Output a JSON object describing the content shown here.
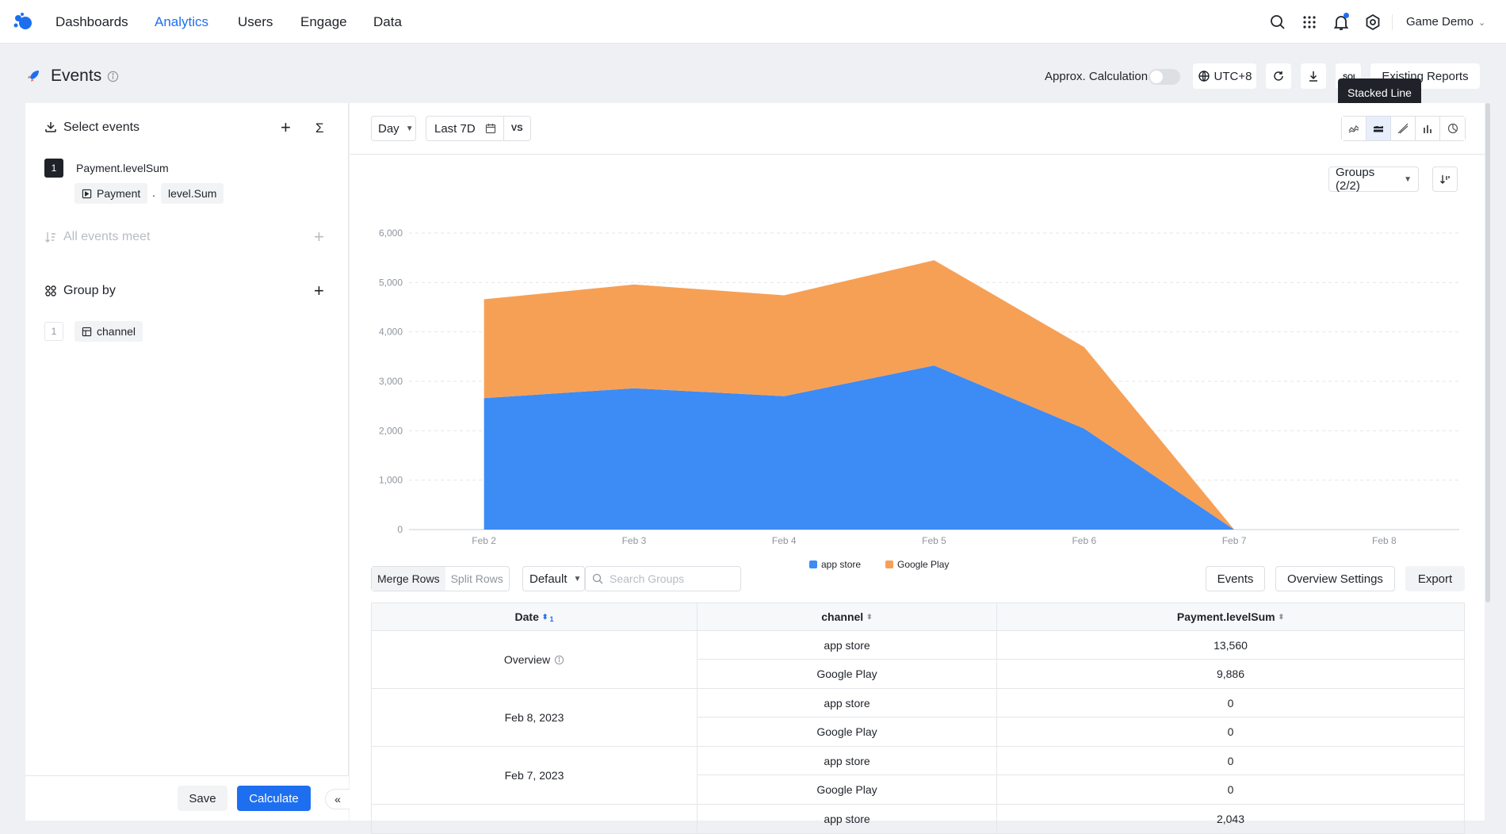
{
  "nav": {
    "items": [
      "Dashboards",
      "Analytics",
      "Users",
      "Engage",
      "Data"
    ],
    "active": "Analytics",
    "project": "Game Demo"
  },
  "header": {
    "title": "Events",
    "approx_label": "Approx. Calculation",
    "approx_enabled": false,
    "timezone": "UTC+8",
    "existing_reports": "Existing Reports",
    "tooltip": "Stacked Line"
  },
  "left": {
    "select_events_title": "Select events",
    "event_index": "1",
    "event_name": "Payment.levelSum",
    "event_chip": "Payment",
    "event_sep": ".",
    "metric_chip": "level.Sum",
    "all_events_meet": "All events meet",
    "group_by_title": "Group by",
    "group_index": "1",
    "group_chip": "channel",
    "save": "Save",
    "calculate": "Calculate",
    "collapse": "«"
  },
  "toolbar": {
    "granularity": "Day",
    "date_range": "Last 7D",
    "vs": "VS",
    "groups": "Groups (2/2)"
  },
  "chart_data": {
    "type": "area",
    "stacked": true,
    "categories": [
      "Feb 2",
      "Feb 3",
      "Feb 4",
      "Feb 5",
      "Feb 6",
      "Feb 7",
      "Feb 8"
    ],
    "series": [
      {
        "name": "app store",
        "color": "#3d8bf5",
        "values": [
          2660,
          2860,
          2700,
          3320,
          2043,
          0,
          null
        ]
      },
      {
        "name": "Google Play",
        "color": "#f6a056",
        "values": [
          2000,
          2100,
          2040,
          2130,
          1650,
          0,
          null
        ]
      }
    ],
    "ylim": [
      0,
      6000
    ],
    "yticks": [
      "0",
      "1,000",
      "2,000",
      "3,000",
      "4,000",
      "5,000",
      "6,000"
    ],
    "legend": "bottom-center",
    "grid": true
  },
  "table": {
    "merge_rows": "Merge Rows",
    "split_rows": "Split Rows",
    "default": "Default",
    "search_placeholder": "Search Groups",
    "events_btn": "Events",
    "overview_settings": "Overview Settings",
    "export": "Export",
    "headers": [
      "Date",
      "channel",
      "Payment.levelSum"
    ],
    "date_sort_index": "1",
    "groups": [
      {
        "date": "Overview",
        "rows": [
          {
            "channel": "app store",
            "value": "13,560"
          },
          {
            "channel": "Google Play",
            "value": "9,886"
          }
        ]
      },
      {
        "date": "Feb 8, 2023",
        "rows": [
          {
            "channel": "app store",
            "value": "0"
          },
          {
            "channel": "Google Play",
            "value": "0"
          }
        ]
      },
      {
        "date": "Feb 7, 2023",
        "rows": [
          {
            "channel": "app store",
            "value": "0"
          },
          {
            "channel": "Google Play",
            "value": "0"
          }
        ]
      },
      {
        "date": "",
        "rows": [
          {
            "channel": "app store",
            "value": "2,043"
          }
        ]
      }
    ]
  }
}
